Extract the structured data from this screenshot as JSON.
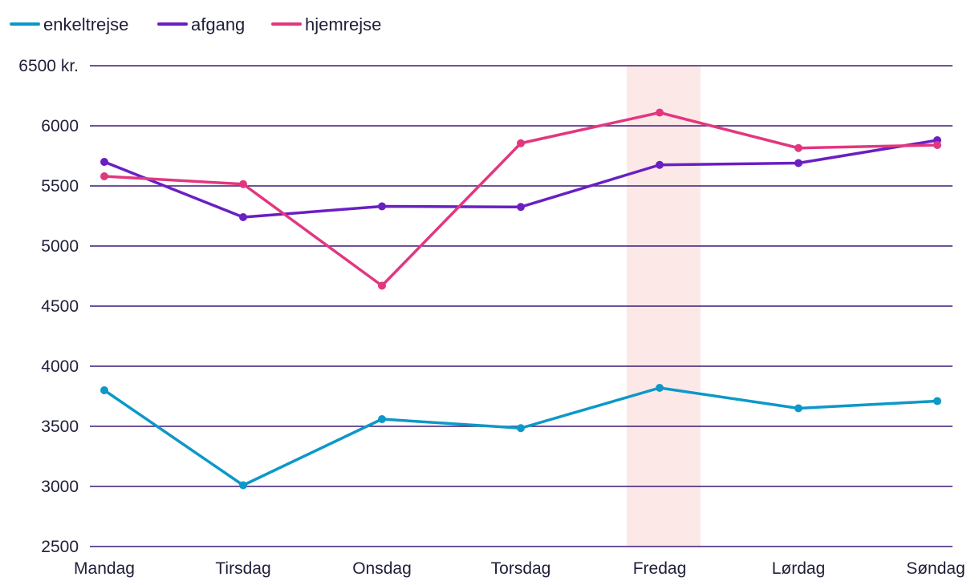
{
  "chart_data": {
    "type": "line",
    "title": "",
    "xlabel": "",
    "ylabel": "",
    "categories": [
      "Mandag",
      "Tirsdag",
      "Onsdag",
      "Torsdag",
      "Fredag",
      "Lørdag",
      "Søndag"
    ],
    "ylim": [
      2500,
      6500
    ],
    "yticks": [
      {
        "value": 2500,
        "label": "2500"
      },
      {
        "value": 3000,
        "label": "3000"
      },
      {
        "value": 3500,
        "label": "3500"
      },
      {
        "value": 4000,
        "label": "4000"
      },
      {
        "value": 4500,
        "label": "4500"
      },
      {
        "value": 5000,
        "label": "5000"
      },
      {
        "value": 5500,
        "label": "5500"
      },
      {
        "value": 6000,
        "label": "6000"
      },
      {
        "value": 6500,
        "label": "6500 kr."
      }
    ],
    "grid": true,
    "highlight_category": "Fredag",
    "legend_position": "top-left",
    "series": [
      {
        "name": "enkeltrejse",
        "color": "#0c98c8",
        "values": [
          3800,
          3010,
          3560,
          3485,
          3820,
          3650,
          3710
        ]
      },
      {
        "name": "afgang",
        "color": "#6a1fc2",
        "values": [
          5700,
          5240,
          5330,
          5325,
          5675,
          5690,
          5880
        ]
      },
      {
        "name": "hjemrejse",
        "color": "#e2377f",
        "values": [
          5580,
          5515,
          4670,
          5855,
          6110,
          5815,
          5840
        ]
      }
    ],
    "colors": {
      "grid": "#3d1a78",
      "highlight": "#fde8e8",
      "text": "#1f1f3a"
    }
  }
}
